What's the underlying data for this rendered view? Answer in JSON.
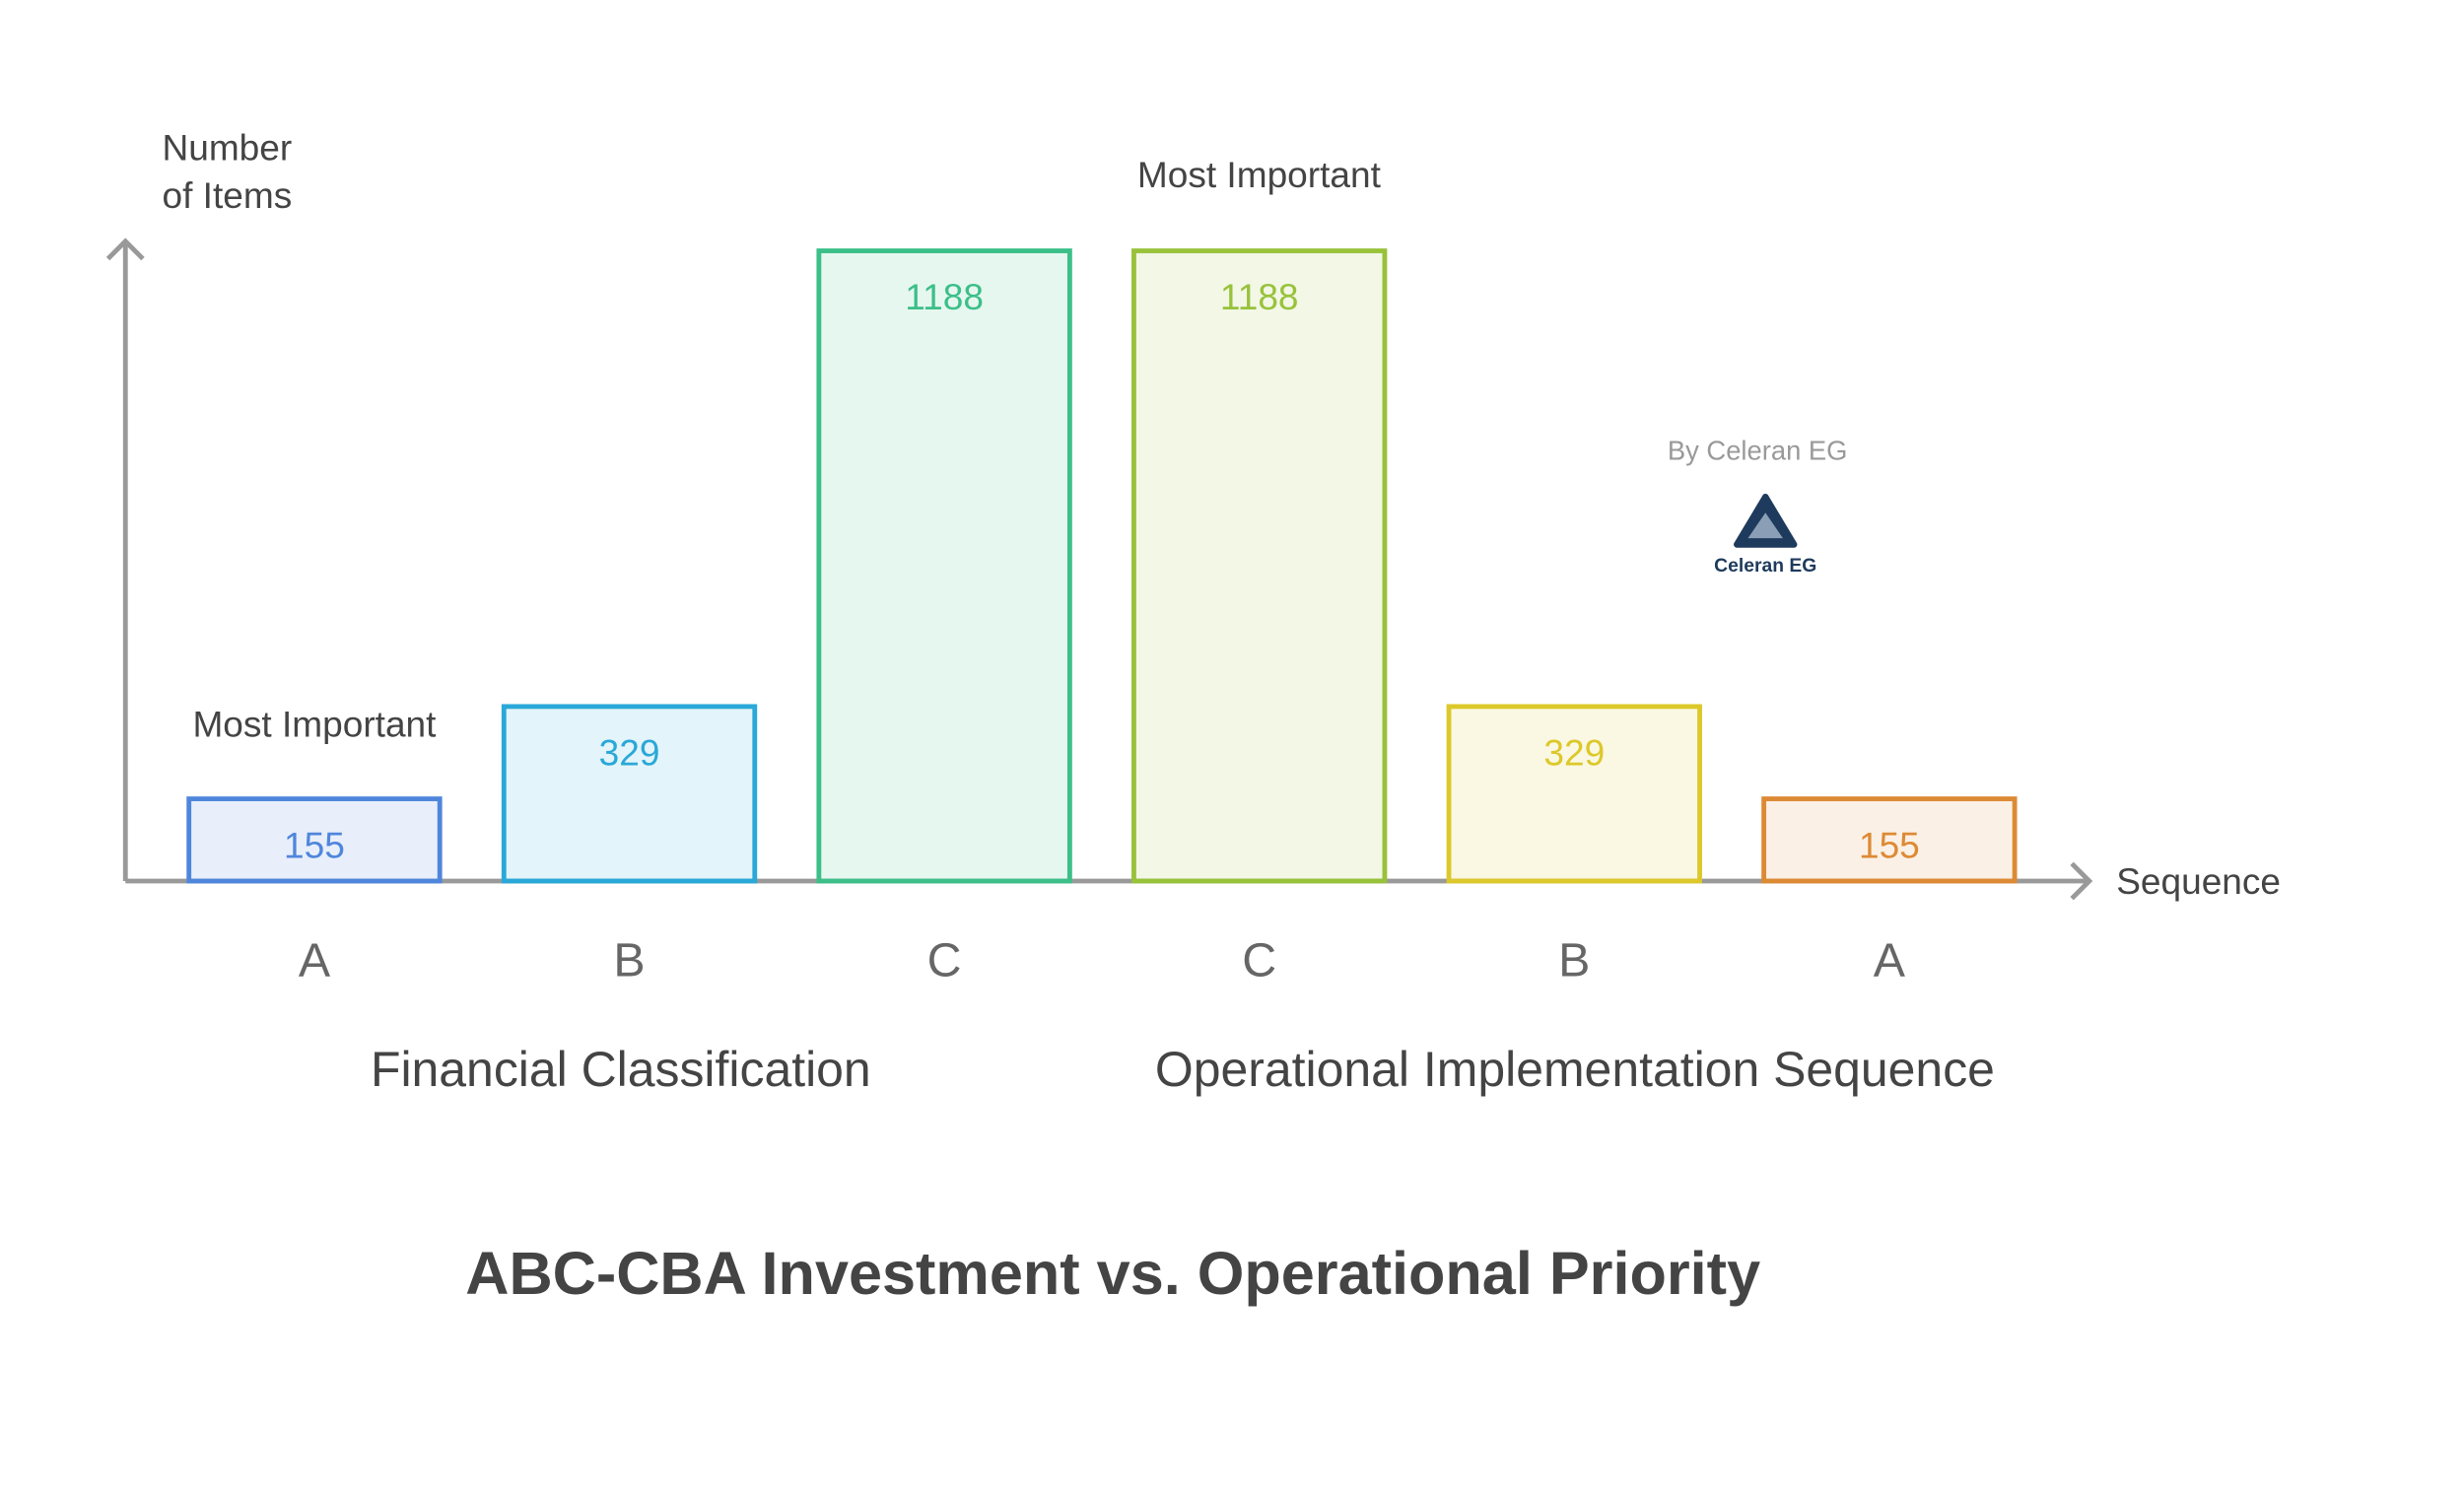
{
  "chart_data": {
    "type": "bar",
    "title": "ABC-CBA Investment vs. Operational Priority",
    "y_label": "Number of Items",
    "x_label": "Sequence",
    "categories": [
      "A",
      "B",
      "C",
      "C",
      "B",
      "A"
    ],
    "values": [
      155,
      329,
      1188,
      1188,
      329,
      155
    ],
    "colors": [
      "#4f86dc",
      "#2aa8d8",
      "#3cbf88",
      "#98c23a",
      "#dcc82a",
      "#dd8a35"
    ],
    "groups": [
      "Financial Classification",
      "Operational Implementation Sequence"
    ],
    "annotations": [
      "Most Important",
      "Most Important"
    ],
    "credit": "By Celeran EG",
    "logo_text": "Celeran EG",
    "ylim": [
      0,
      1200
    ]
  }
}
